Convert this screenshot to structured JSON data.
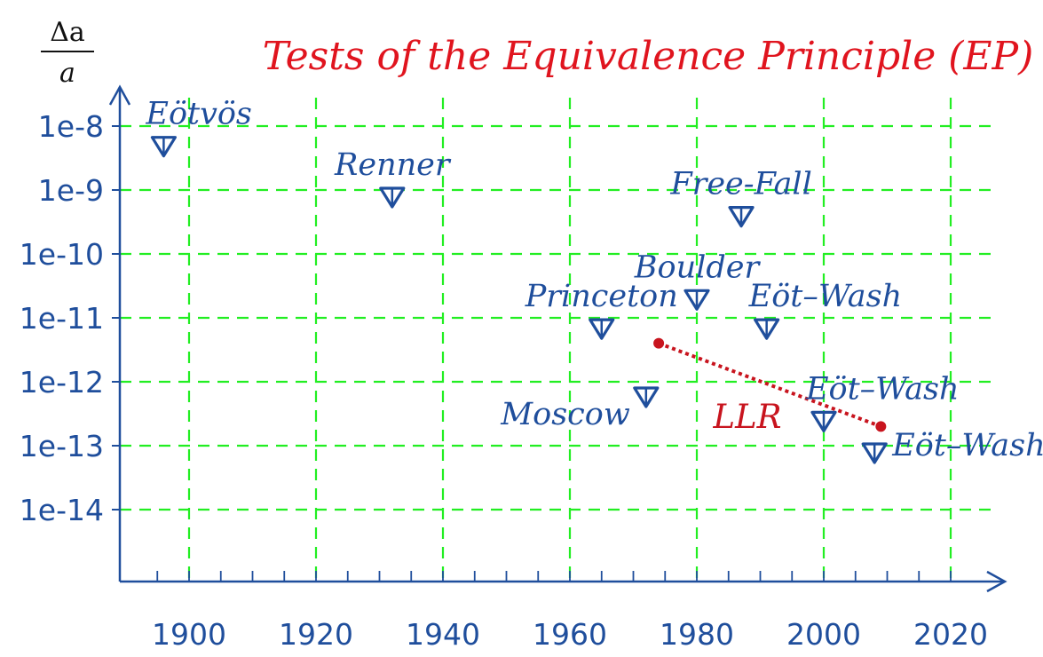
{
  "chart_data": {
    "type": "scatter",
    "title": "Tests of  the Equivalence Principle (EP)",
    "ylabel": {
      "numerator": "Δa",
      "denominator": "a"
    },
    "xlabel": "",
    "y_scale": "log",
    "grid": true,
    "xlim": [
      1890,
      2021
    ],
    "x_ticks": [
      "1900",
      "1920",
      "1940",
      "1960",
      "1980",
      "2000",
      "2020"
    ],
    "y_ticks": [
      "1e-8",
      "1e-9",
      "1e-10",
      "1e-11",
      "1e-12",
      "1e-13",
      "1e-14"
    ],
    "colors": {
      "axis": "#1f4e9c",
      "grid": "#22ee22",
      "marker": "#1f4e9c",
      "llr": "#c8141e",
      "title": "#e0141e"
    },
    "experiments": [
      {
        "name": "Eötvös",
        "x": 1896,
        "y": 5e-09,
        "label_anchor": "start",
        "label_side": "above"
      },
      {
        "name": "Renner",
        "x": 1932,
        "y": 8e-10,
        "label_anchor": "middle",
        "label_side": "above"
      },
      {
        "name": "Free-Fall",
        "x": 1987,
        "y": 4e-10,
        "label_anchor": "middle",
        "label_side": "above"
      },
      {
        "name": "Boulder",
        "x": 1980,
        "y": 2e-11,
        "label_anchor": "middle",
        "label_side": "above"
      },
      {
        "name": "Princeton",
        "x": 1965,
        "y": 7e-12,
        "label_anchor": "middle",
        "label_side": "above"
      },
      {
        "name": "Eöt–Wash",
        "x": 1991,
        "y": 7e-12,
        "label_anchor": "start",
        "label_side": "above"
      },
      {
        "name": "Moscow",
        "x": 1972,
        "y": 6e-13,
        "label_anchor": "end",
        "label_side": "left"
      },
      {
        "name": "Eöt–Wash",
        "x": 2000,
        "y": 2.5e-13,
        "label_anchor": "start",
        "label_side": "above"
      },
      {
        "name": "Eöt–Wash",
        "x": 2008,
        "y": 8e-14,
        "label_anchor": "start",
        "label_side": "right"
      }
    ],
    "llr": {
      "name": "LLR",
      "x": [
        1974,
        2009
      ],
      "y": [
        4e-12,
        2e-13
      ]
    }
  }
}
